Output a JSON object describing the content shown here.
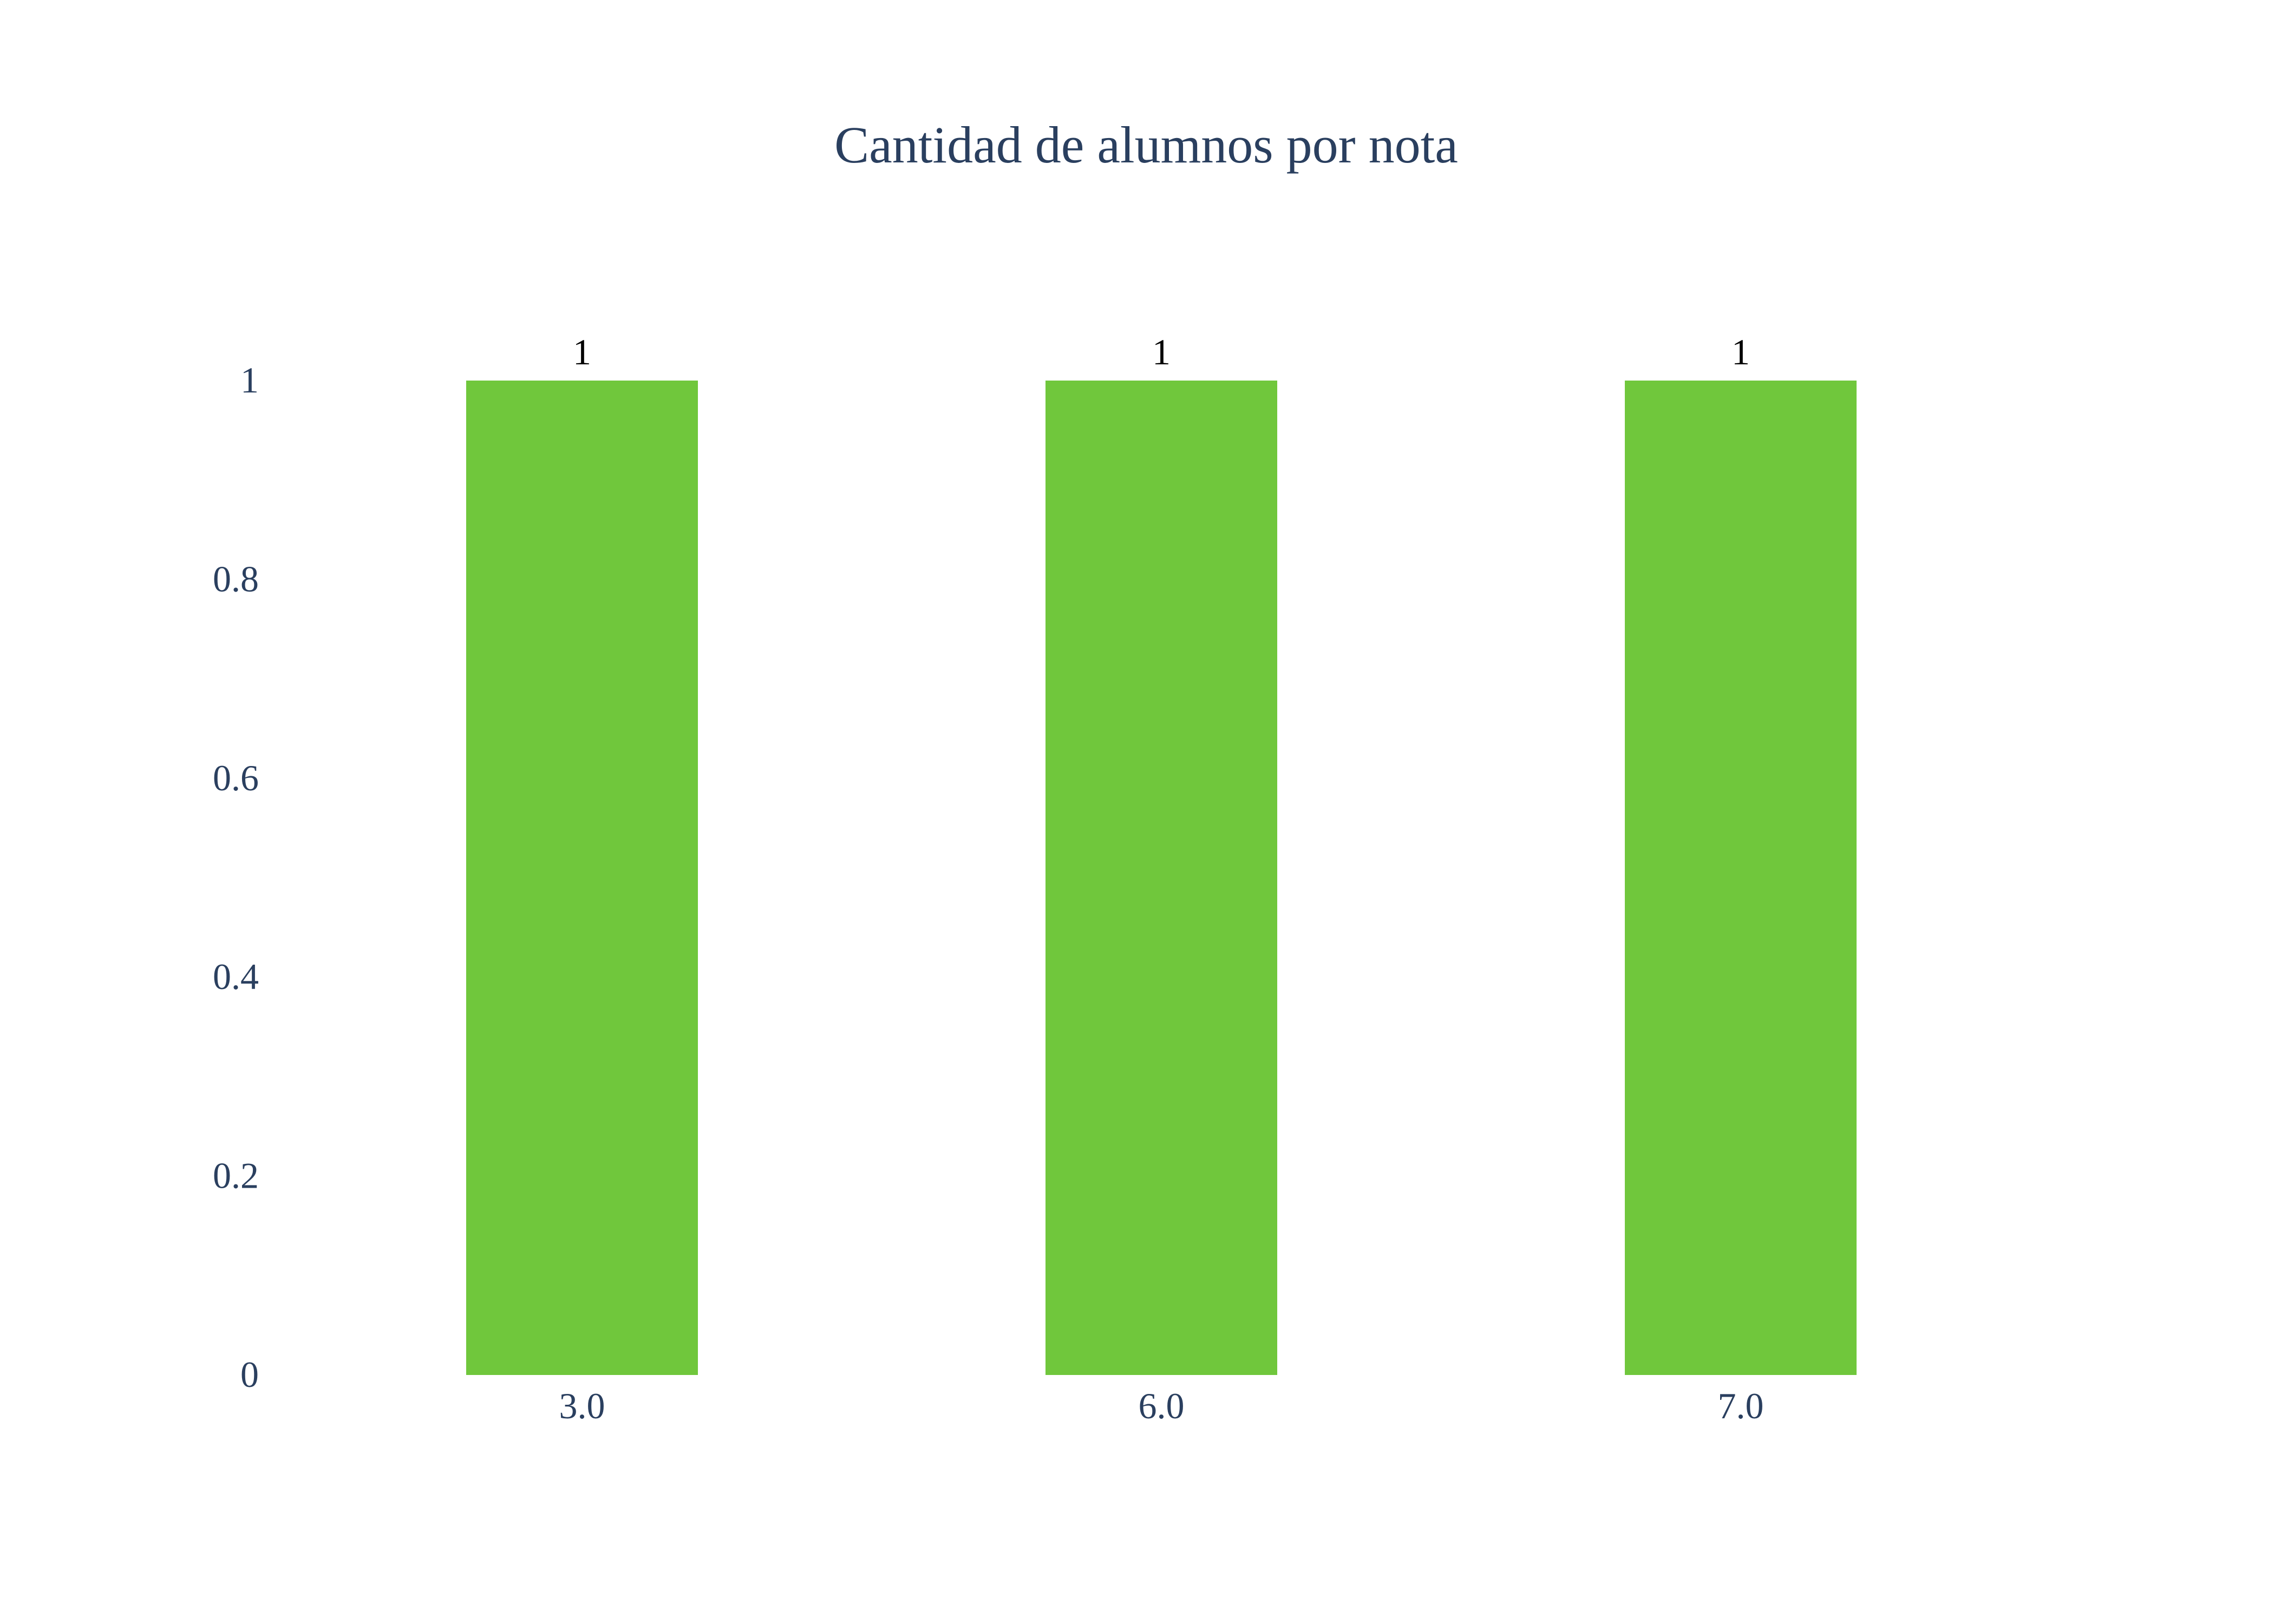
{
  "chart_data": {
    "type": "bar",
    "title": "Cantidad de alumnos por nota",
    "xlabel": "",
    "ylabel": "",
    "categories": [
      "3.0",
      "6.0",
      "7.0"
    ],
    "values": [
      1,
      1,
      1
    ],
    "data_labels": [
      "1",
      "1",
      "1"
    ],
    "ylim": [
      0,
      1
    ],
    "yticks": [
      0,
      0.2,
      0.4,
      0.6,
      0.8,
      1
    ],
    "ytick_labels": [
      "0",
      "0.2",
      "0.4",
      "0.6",
      "0.8",
      "1"
    ],
    "grid": false,
    "legend": "none",
    "bar_color": "#70c73c",
    "text_color": "#2a3f5f",
    "label_color": "#000000"
  }
}
